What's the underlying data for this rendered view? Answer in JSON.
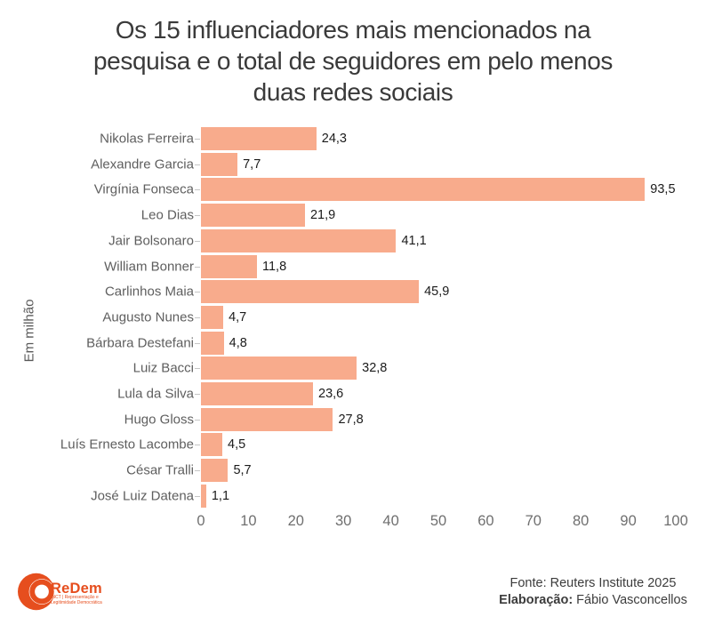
{
  "title": {
    "lines": [
      "Os 15 influenciadores mais mencionados na",
      "pesquisa e o total de seguidores em pelo menos",
      "duas redes sociais"
    ]
  },
  "chart_data": {
    "type": "bar",
    "orientation": "horizontal",
    "title": "Os 15 influenciadores mais mencionados na pesquisa e o total de seguidores em pelo menos duas redes sociais",
    "ylabel": "Em milhão",
    "xlim": [
      0,
      100
    ],
    "x_ticks": [
      0,
      10,
      20,
      30,
      40,
      50,
      60,
      70,
      80,
      90,
      100
    ],
    "grid": false,
    "legend": false,
    "bar_color": "#f8ab8c",
    "categories": [
      "Nikolas Ferreira",
      "Alexandre Garcia",
      "Virgínia Fonseca",
      "Leo Dias",
      "Jair Bolsonaro",
      "William Bonner",
      "Carlinhos Maia",
      "Augusto Nunes",
      "Bárbara Destefani",
      "Luiz Bacci",
      "Lula da Silva",
      "Hugo Gloss",
      "Luís Ernesto Lacombe",
      "César Tralli",
      "José Luiz Datena"
    ],
    "values": [
      24.3,
      7.7,
      93.5,
      21.9,
      41.1,
      11.8,
      45.9,
      4.7,
      4.8,
      32.8,
      23.6,
      27.8,
      4.5,
      5.7,
      1.1
    ],
    "value_labels": [
      "24,3",
      "7,7",
      "93,5",
      "21,9",
      "41,1",
      "11,8",
      "45,9",
      "4,7",
      "4,8",
      "32,8",
      "23,6",
      "27,8",
      "4,5",
      "5,7",
      "1,1"
    ]
  },
  "footer": {
    "source_line": "Fonte: Reuters Institute 2025",
    "elaboration_label": "Elaboração:",
    "elaboration_value": " Fábio Vasconcellos"
  },
  "logo": {
    "name": "ReDem",
    "tagline_line1": "INCT | Representação e",
    "tagline_line2": "Legitimidade Democrática",
    "color": "#e64e1e"
  }
}
